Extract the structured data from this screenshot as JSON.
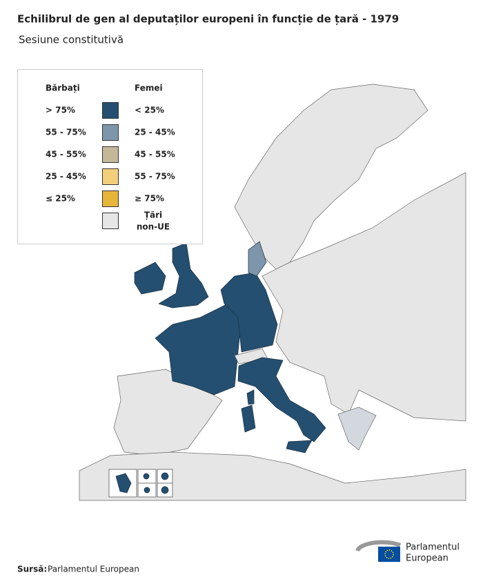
{
  "header": {
    "title": "Echilibrul de gen al deputaților europeni în funcție de țară - 1979",
    "subtitle": "Sesiune constitutivă"
  },
  "legend": {
    "men_heading": "Bărbați",
    "women_heading": "Femei",
    "items": [
      {
        "men": "> 75%",
        "women": "< 25%",
        "color": "#244f70"
      },
      {
        "men": "55 - 75%",
        "women": "25 - 45%",
        "color": "#7e96ab"
      },
      {
        "men": "45 - 55%",
        "women": "45 - 55%",
        "color": "#c3b999"
      },
      {
        "men": "25 - 45%",
        "women": "55 - 75%",
        "color": "#f3cf7b"
      },
      {
        "men": "≤ 25%",
        "women": "≥ 75%",
        "color": "#e8b53b"
      }
    ],
    "non_eu": {
      "lines": [
        "Țări",
        "non-UE"
      ],
      "color": "#e6e6e6"
    }
  },
  "footer": {
    "source_label": "Sursă:",
    "source": "Parlamentul European",
    "logo": [
      "Parlamentul",
      "European"
    ]
  }
}
